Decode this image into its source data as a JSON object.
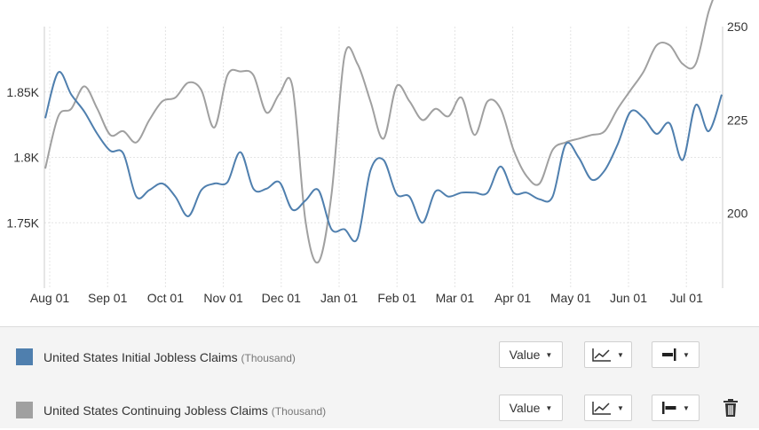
{
  "chart_data": {
    "type": "line",
    "x_labels": [
      "Aug 01",
      "Sep 01",
      "Oct 01",
      "Nov 01",
      "Dec 01",
      "Jan 01",
      "Feb 01",
      "Mar 01",
      "Apr 01",
      "May 01",
      "Jun 01",
      "Jul 01"
    ],
    "y_left_ticks": [
      "1.85K",
      "1.8K",
      "1.75K"
    ],
    "y_right_ticks": [
      "250",
      "225",
      "200"
    ],
    "y_left_range": [
      1700,
      1900
    ],
    "y_right_range": [
      180,
      250
    ],
    "grid": true,
    "series": [
      {
        "name": "United States Initial Jobless Claims",
        "unit": "Thousand",
        "axis": "left",
        "color": "#4f7fae",
        "values": [
          1830,
          1865,
          1848,
          1835,
          1818,
          1805,
          1803,
          1770,
          1775,
          1780,
          1770,
          1755,
          1775,
          1780,
          1781,
          1804,
          1776,
          1776,
          1781,
          1760,
          1767,
          1775,
          1745,
          1745,
          1738,
          1790,
          1798,
          1772,
          1770,
          1750,
          1774,
          1770,
          1773,
          1773,
          1773,
          1793,
          1773,
          1773,
          1768,
          1770,
          1810,
          1800,
          1783,
          1790,
          1810,
          1835,
          1830,
          1818,
          1826,
          1798,
          1840,
          1820,
          1848
        ]
      },
      {
        "name": "United States Continuing Jobless Claims",
        "unit": "Thousand",
        "axis": "right",
        "color": "#a0a0a0",
        "values": [
          212,
          226,
          228,
          234,
          228,
          221,
          222,
          219,
          225,
          230,
          231,
          235,
          233,
          223,
          237,
          238,
          237,
          227,
          232,
          234,
          198,
          187,
          205,
          242,
          240,
          230,
          220,
          234,
          230,
          225,
          228,
          226,
          231,
          221,
          230,
          228,
          217,
          210,
          208,
          217,
          219,
          220,
          221,
          222,
          228,
          233,
          238,
          245,
          245,
          240,
          240,
          254,
          263
        ]
      }
    ]
  },
  "legend": {
    "rows": [
      {
        "label": "United States Initial Jobless Claims",
        "unit": "(Thousand)",
        "color": "#4f7fae",
        "value_button": "Value"
      },
      {
        "label": "United States Continuing Jobless Claims",
        "unit": "(Thousand)",
        "color": "#a0a0a0",
        "value_button": "Value"
      }
    ]
  }
}
